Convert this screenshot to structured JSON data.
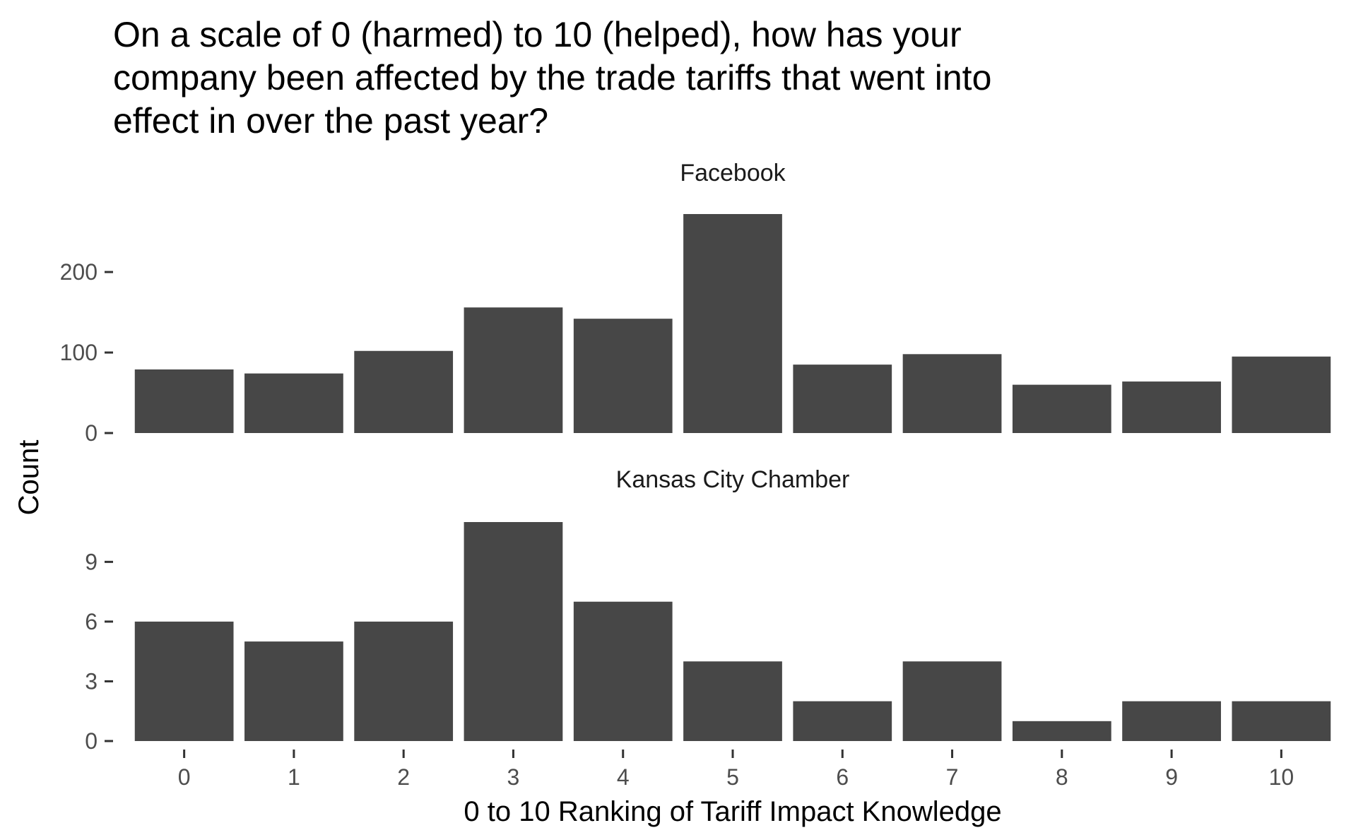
{
  "chart_data": {
    "type": "bar",
    "title_lines": [
      "On a scale of 0 (harmed) to 10 (helped), how has your",
      "company been affected by the trade tariffs that went into",
      "effect in over the past year?"
    ],
    "xlabel": "0 to 10 Ranking of Tariff Impact Knowledge",
    "ylabel": "Count",
    "categories": [
      "0",
      "1",
      "2",
      "3",
      "4",
      "5",
      "6",
      "7",
      "8",
      "9",
      "10"
    ],
    "bar_color": "#474747",
    "panels": [
      {
        "name": "Facebook",
        "values": [
          79,
          74,
          102,
          156,
          142,
          272,
          85,
          98,
          60,
          64,
          95
        ],
        "ylim": [
          0,
          272
        ],
        "yticks": [
          0,
          100,
          200
        ],
        "ytick_labels": [
          "0",
          "100",
          "200"
        ]
      },
      {
        "name": "Kansas City Chamber",
        "values": [
          6,
          5,
          6,
          11,
          7,
          4,
          2,
          4,
          1,
          2,
          2
        ],
        "ylim": [
          0,
          11
        ],
        "yticks": [
          0,
          3,
          6,
          9
        ],
        "ytick_labels": [
          "0",
          "3",
          "6",
          "9"
        ]
      }
    ]
  }
}
